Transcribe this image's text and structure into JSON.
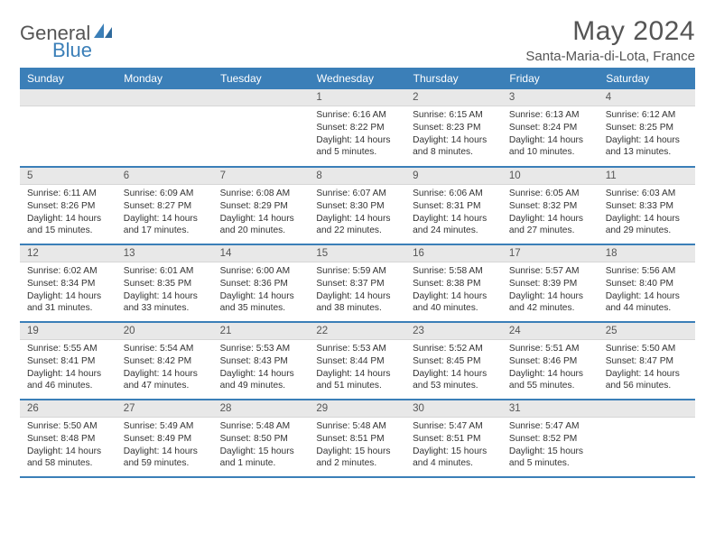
{
  "brand": {
    "part1": "General",
    "part2": "Blue"
  },
  "title": "May 2024",
  "location": "Santa-Maria-di-Lota, France",
  "colors": {
    "header_bg": "#3b7fb8",
    "header_text": "#ffffff",
    "daynum_bg": "#e8e8e8",
    "text": "#333333",
    "rule": "#3b7fb8"
  },
  "dayHeaders": [
    "Sunday",
    "Monday",
    "Tuesday",
    "Wednesday",
    "Thursday",
    "Friday",
    "Saturday"
  ],
  "weeks": [
    [
      {
        "n": "",
        "lines": []
      },
      {
        "n": "",
        "lines": []
      },
      {
        "n": "",
        "lines": []
      },
      {
        "n": "1",
        "lines": [
          "Sunrise: 6:16 AM",
          "Sunset: 8:22 PM",
          "Daylight: 14 hours",
          "and 5 minutes."
        ]
      },
      {
        "n": "2",
        "lines": [
          "Sunrise: 6:15 AM",
          "Sunset: 8:23 PM",
          "Daylight: 14 hours",
          "and 8 minutes."
        ]
      },
      {
        "n": "3",
        "lines": [
          "Sunrise: 6:13 AM",
          "Sunset: 8:24 PM",
          "Daylight: 14 hours",
          "and 10 minutes."
        ]
      },
      {
        "n": "4",
        "lines": [
          "Sunrise: 6:12 AM",
          "Sunset: 8:25 PM",
          "Daylight: 14 hours",
          "and 13 minutes."
        ]
      }
    ],
    [
      {
        "n": "5",
        "lines": [
          "Sunrise: 6:11 AM",
          "Sunset: 8:26 PM",
          "Daylight: 14 hours",
          "and 15 minutes."
        ]
      },
      {
        "n": "6",
        "lines": [
          "Sunrise: 6:09 AM",
          "Sunset: 8:27 PM",
          "Daylight: 14 hours",
          "and 17 minutes."
        ]
      },
      {
        "n": "7",
        "lines": [
          "Sunrise: 6:08 AM",
          "Sunset: 8:29 PM",
          "Daylight: 14 hours",
          "and 20 minutes."
        ]
      },
      {
        "n": "8",
        "lines": [
          "Sunrise: 6:07 AM",
          "Sunset: 8:30 PM",
          "Daylight: 14 hours",
          "and 22 minutes."
        ]
      },
      {
        "n": "9",
        "lines": [
          "Sunrise: 6:06 AM",
          "Sunset: 8:31 PM",
          "Daylight: 14 hours",
          "and 24 minutes."
        ]
      },
      {
        "n": "10",
        "lines": [
          "Sunrise: 6:05 AM",
          "Sunset: 8:32 PM",
          "Daylight: 14 hours",
          "and 27 minutes."
        ]
      },
      {
        "n": "11",
        "lines": [
          "Sunrise: 6:03 AM",
          "Sunset: 8:33 PM",
          "Daylight: 14 hours",
          "and 29 minutes."
        ]
      }
    ],
    [
      {
        "n": "12",
        "lines": [
          "Sunrise: 6:02 AM",
          "Sunset: 8:34 PM",
          "Daylight: 14 hours",
          "and 31 minutes."
        ]
      },
      {
        "n": "13",
        "lines": [
          "Sunrise: 6:01 AM",
          "Sunset: 8:35 PM",
          "Daylight: 14 hours",
          "and 33 minutes."
        ]
      },
      {
        "n": "14",
        "lines": [
          "Sunrise: 6:00 AM",
          "Sunset: 8:36 PM",
          "Daylight: 14 hours",
          "and 35 minutes."
        ]
      },
      {
        "n": "15",
        "lines": [
          "Sunrise: 5:59 AM",
          "Sunset: 8:37 PM",
          "Daylight: 14 hours",
          "and 38 minutes."
        ]
      },
      {
        "n": "16",
        "lines": [
          "Sunrise: 5:58 AM",
          "Sunset: 8:38 PM",
          "Daylight: 14 hours",
          "and 40 minutes."
        ]
      },
      {
        "n": "17",
        "lines": [
          "Sunrise: 5:57 AM",
          "Sunset: 8:39 PM",
          "Daylight: 14 hours",
          "and 42 minutes."
        ]
      },
      {
        "n": "18",
        "lines": [
          "Sunrise: 5:56 AM",
          "Sunset: 8:40 PM",
          "Daylight: 14 hours",
          "and 44 minutes."
        ]
      }
    ],
    [
      {
        "n": "19",
        "lines": [
          "Sunrise: 5:55 AM",
          "Sunset: 8:41 PM",
          "Daylight: 14 hours",
          "and 46 minutes."
        ]
      },
      {
        "n": "20",
        "lines": [
          "Sunrise: 5:54 AM",
          "Sunset: 8:42 PM",
          "Daylight: 14 hours",
          "and 47 minutes."
        ]
      },
      {
        "n": "21",
        "lines": [
          "Sunrise: 5:53 AM",
          "Sunset: 8:43 PM",
          "Daylight: 14 hours",
          "and 49 minutes."
        ]
      },
      {
        "n": "22",
        "lines": [
          "Sunrise: 5:53 AM",
          "Sunset: 8:44 PM",
          "Daylight: 14 hours",
          "and 51 minutes."
        ]
      },
      {
        "n": "23",
        "lines": [
          "Sunrise: 5:52 AM",
          "Sunset: 8:45 PM",
          "Daylight: 14 hours",
          "and 53 minutes."
        ]
      },
      {
        "n": "24",
        "lines": [
          "Sunrise: 5:51 AM",
          "Sunset: 8:46 PM",
          "Daylight: 14 hours",
          "and 55 minutes."
        ]
      },
      {
        "n": "25",
        "lines": [
          "Sunrise: 5:50 AM",
          "Sunset: 8:47 PM",
          "Daylight: 14 hours",
          "and 56 minutes."
        ]
      }
    ],
    [
      {
        "n": "26",
        "lines": [
          "Sunrise: 5:50 AM",
          "Sunset: 8:48 PM",
          "Daylight: 14 hours",
          "and 58 minutes."
        ]
      },
      {
        "n": "27",
        "lines": [
          "Sunrise: 5:49 AM",
          "Sunset: 8:49 PM",
          "Daylight: 14 hours",
          "and 59 minutes."
        ]
      },
      {
        "n": "28",
        "lines": [
          "Sunrise: 5:48 AM",
          "Sunset: 8:50 PM",
          "Daylight: 15 hours",
          "and 1 minute."
        ]
      },
      {
        "n": "29",
        "lines": [
          "Sunrise: 5:48 AM",
          "Sunset: 8:51 PM",
          "Daylight: 15 hours",
          "and 2 minutes."
        ]
      },
      {
        "n": "30",
        "lines": [
          "Sunrise: 5:47 AM",
          "Sunset: 8:51 PM",
          "Daylight: 15 hours",
          "and 4 minutes."
        ]
      },
      {
        "n": "31",
        "lines": [
          "Sunrise: 5:47 AM",
          "Sunset: 8:52 PM",
          "Daylight: 15 hours",
          "and 5 minutes."
        ]
      },
      {
        "n": "",
        "lines": []
      }
    ]
  ]
}
